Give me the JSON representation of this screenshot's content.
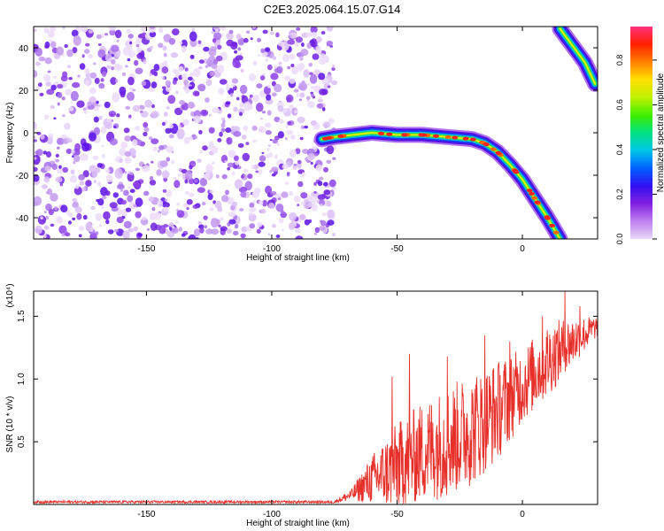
{
  "title": "C2E3.2025.064.15.07.G14",
  "chart_data": [
    {
      "type": "heatmap",
      "xlabel": "Height of straight line (km)",
      "ylabel": "Frequency (Hz)",
      "xlim": [
        -195,
        30
      ],
      "ylim": [
        -50,
        50
      ],
      "x_ticks": [
        -150,
        -100,
        -50,
        0
      ],
      "y_ticks": [
        -40,
        -20,
        0,
        20,
        40
      ],
      "colorbar": {
        "label": "Normalized spectral amplitude",
        "ticks": [
          "0.0",
          "0.2",
          "0.4",
          "0.6",
          "0.8"
        ],
        "range": [
          0,
          0.95
        ],
        "colors": [
          "#e8d8f8",
          "#c080f0",
          "#8020e0",
          "#3010f0",
          "#0060ff",
          "#00c8e8",
          "#00e080",
          "#40f000",
          "#c0f000",
          "#ffe000",
          "#ff8000",
          "#ff2000",
          "#ff3080"
        ]
      },
      "noise_region_x": [
        -195,
        -75
      ],
      "signal_trace": [
        {
          "x": -80,
          "y": -3
        },
        {
          "x": -75,
          "y": -2
        },
        {
          "x": -60,
          "y": 0
        },
        {
          "x": -50,
          "y": -1
        },
        {
          "x": -40,
          "y": -1
        },
        {
          "x": -30,
          "y": -2
        },
        {
          "x": -20,
          "y": -3
        },
        {
          "x": -15,
          "y": -5
        },
        {
          "x": -10,
          "y": -9
        },
        {
          "x": -5,
          "y": -15
        },
        {
          "x": 0,
          "y": -22
        },
        {
          "x": 5,
          "y": -31
        },
        {
          "x": 10,
          "y": -40
        },
        {
          "x": 15,
          "y": -50
        }
      ],
      "secondary_trace": [
        {
          "x": 15,
          "y": 49
        },
        {
          "x": 20,
          "y": 41
        },
        {
          "x": 25,
          "y": 33
        },
        {
          "x": 29,
          "y": 23
        }
      ]
    },
    {
      "type": "line",
      "xlabel": "Height of straight line (km)",
      "ylabel": "SNR (10 * v/v)",
      "yunit": "(x10⁴)",
      "xlim": [
        -195,
        30
      ],
      "ylim": [
        0,
        1.7
      ],
      "x_ticks": [
        -150,
        -100,
        -50,
        0
      ],
      "y_ticks": [
        "0.5",
        "1.0",
        "1.5"
      ],
      "line_color": "#e8302a",
      "envelope": [
        {
          "x": -195,
          "base": 0.02,
          "amp": 0.01
        },
        {
          "x": -75,
          "base": 0.02,
          "amp": 0.01
        },
        {
          "x": -68,
          "base": 0.08,
          "amp": 0.05
        },
        {
          "x": -60,
          "base": 0.2,
          "amp": 0.2
        },
        {
          "x": -50,
          "base": 0.3,
          "amp": 0.35
        },
        {
          "x": -40,
          "base": 0.42,
          "amp": 0.4
        },
        {
          "x": -30,
          "base": 0.5,
          "amp": 0.45
        },
        {
          "x": -20,
          "base": 0.6,
          "amp": 0.45
        },
        {
          "x": -10,
          "base": 0.75,
          "amp": 0.4
        },
        {
          "x": 0,
          "base": 0.95,
          "amp": 0.3
        },
        {
          "x": 10,
          "base": 1.15,
          "amp": 0.3
        },
        {
          "x": 20,
          "base": 1.3,
          "amp": 0.2
        },
        {
          "x": 30,
          "base": 1.42,
          "amp": 0.08
        }
      ],
      "spikes": [
        {
          "x": -52,
          "y": 1.02
        },
        {
          "x": -45,
          "y": 1.2
        },
        {
          "x": -30,
          "y": 1.18
        },
        {
          "x": -15,
          "y": 1.35
        },
        {
          "x": -5,
          "y": 1.3
        },
        {
          "x": 8,
          "y": 1.5
        },
        {
          "x": 17,
          "y": 1.7
        },
        {
          "x": 23,
          "y": 1.58
        }
      ]
    }
  ]
}
